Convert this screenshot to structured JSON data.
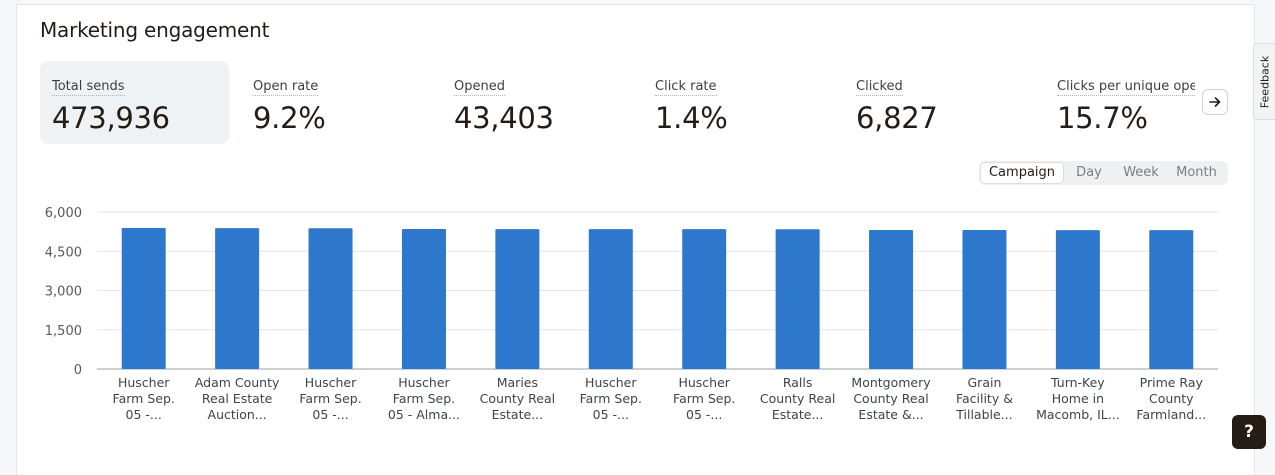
{
  "section": {
    "title": "Marketing engagement"
  },
  "metrics": [
    {
      "label": "Total sends",
      "value": "473,936"
    },
    {
      "label": "Open rate",
      "value": "9.2%"
    },
    {
      "label": "Opened",
      "value": "43,403"
    },
    {
      "label": "Click rate",
      "value": "1.4%"
    },
    {
      "label": "Clicked",
      "value": "6,827"
    },
    {
      "label": "Clicks per unique opens",
      "value": "15.7%"
    }
  ],
  "controls": {
    "next_icon": "arrow-right-icon",
    "feedback_label": "Feedback",
    "help_label": "?",
    "periods": [
      "Campaign",
      "Day",
      "Week",
      "Month"
    ],
    "selected_period": "Campaign"
  },
  "colors": {
    "bar": "#2d78cc",
    "active_metric_bg": "#eff2f4"
  },
  "chart_data": {
    "type": "bar",
    "ylim": [
      0,
      6000
    ],
    "yticks": [
      "6,000",
      "4,500",
      "3,000",
      "1,500",
      "0"
    ],
    "ytick_values": [
      6000,
      4500,
      3000,
      1500,
      0
    ],
    "grid": true,
    "categories": [
      [
        "Huscher",
        "Farm Sep.",
        "05 -..."
      ],
      [
        "Adam County",
        "Real Estate",
        "Auction..."
      ],
      [
        "Huscher",
        "Farm Sep.",
        "05 -..."
      ],
      [
        "Huscher",
        "Farm Sep.",
        "05 - Alma..."
      ],
      [
        "Maries",
        "County Real",
        "Estate..."
      ],
      [
        "Huscher",
        "Farm Sep.",
        "05 -..."
      ],
      [
        "Huscher",
        "Farm Sep.",
        "05 -..."
      ],
      [
        "Ralls",
        "County Real",
        "Estate..."
      ],
      [
        "Montgomery",
        "County Real",
        "Estate &..."
      ],
      [
        "Grain",
        "Facility &",
        "Tillable..."
      ],
      [
        "Turn-Key",
        "Home in",
        "Macomb, IL..."
      ],
      [
        "Prime Ray",
        "County",
        "Farmland..."
      ]
    ],
    "values": [
      5390,
      5385,
      5380,
      5350,
      5345,
      5345,
      5345,
      5340,
      5310,
      5310,
      5305,
      5305
    ]
  }
}
